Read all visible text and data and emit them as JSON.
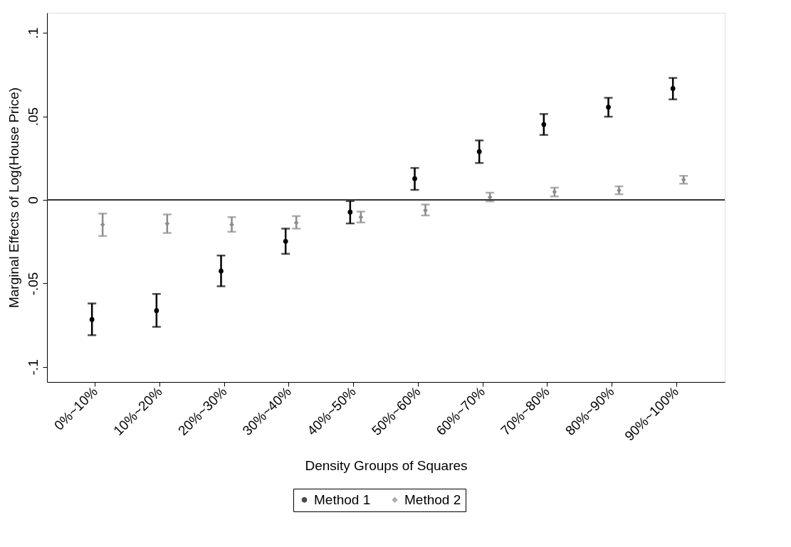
{
  "chart_data": {
    "type": "scatter",
    "xlabel": "Density Groups of Squares",
    "ylabel": "Marginal Effects of Log(House Price)",
    "categories": [
      "0%~10%",
      "10%~20%",
      "20%~30%",
      "30%~40%",
      "40%~50%",
      "50%~60%",
      "60%~70%",
      "70%~80%",
      "80%~90%",
      "90%~100%"
    ],
    "series": [
      {
        "name": "Method 1",
        "color": "#000000",
        "marker": "circle",
        "values": [
          -0.0716,
          -0.0663,
          -0.0426,
          -0.0248,
          -0.0073,
          0.0127,
          0.0289,
          0.0451,
          0.0555,
          0.0667
        ],
        "errors": [
          [
            -0.081,
            -0.062
          ],
          [
            -0.076,
            -0.0563
          ],
          [
            -0.0517,
            -0.0333
          ],
          [
            -0.0323,
            -0.0172
          ],
          [
            -0.0141,
            -0.0007
          ],
          [
            0.006,
            0.0191
          ],
          [
            0.0221,
            0.0356
          ],
          [
            0.0389,
            0.0514
          ],
          [
            0.0498,
            0.0611
          ],
          [
            0.0602,
            0.073
          ]
        ]
      },
      {
        "name": "Method 2",
        "color": "#8c8c8c",
        "marker": "diamond",
        "values": [
          -0.0148,
          -0.0142,
          -0.0148,
          -0.0137,
          -0.0103,
          -0.0063,
          0.0016,
          0.0048,
          0.0057,
          0.0121
        ],
        "errors": [
          [
            -0.0216,
            -0.0082
          ],
          [
            -0.0198,
            -0.0087
          ],
          [
            -0.0191,
            -0.0103
          ],
          [
            -0.0172,
            -0.0097
          ],
          [
            -0.0135,
            -0.007
          ],
          [
            -0.0093,
            -0.0028
          ],
          [
            -0.0009,
            0.0043
          ],
          [
            0.0021,
            0.0073
          ],
          [
            0.0034,
            0.0081
          ],
          [
            0.0097,
            0.0144
          ]
        ]
      }
    ],
    "ylim": [
      -0.109,
      0.112
    ],
    "yticks": [
      {
        "value": -0.1,
        "label": "-.1"
      },
      {
        "value": -0.05,
        "label": "-.05"
      },
      {
        "value": 0,
        "label": "0"
      },
      {
        "value": 0.05,
        "label": ".05"
      },
      {
        "value": 0.1,
        "label": ".1"
      }
    ],
    "ref_lines": [
      {
        "axis": "y",
        "value": 0,
        "color": "#333333"
      }
    ],
    "grid": false,
    "legend": "bottom"
  }
}
